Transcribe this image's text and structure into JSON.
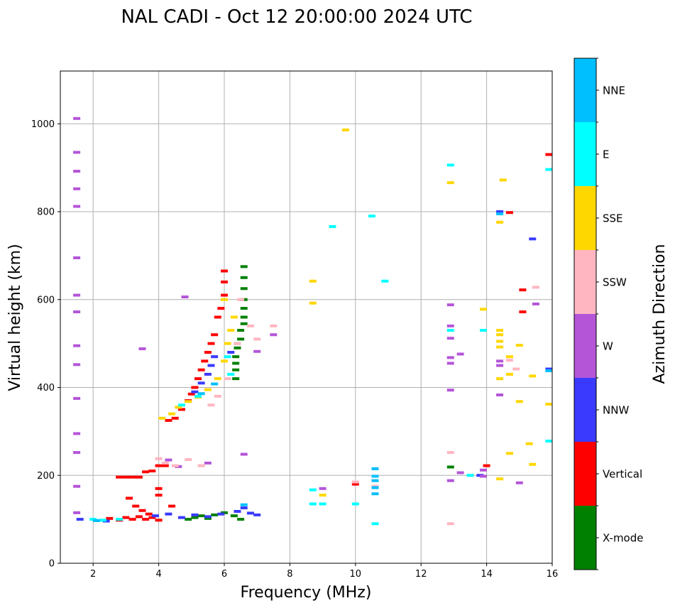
{
  "chart_data": {
    "type": "scatter",
    "title": "NAL CADI - Oct 12 20:00:00 2024 UTC",
    "xlabel": "Frequency (MHz)",
    "ylabel": "Virtual height (km)",
    "xlim": [
      1,
      16
    ],
    "ylim": [
      0,
      1120
    ],
    "xticks": [
      2,
      4,
      6,
      8,
      10,
      12,
      14,
      16
    ],
    "yticks": [
      0,
      200,
      400,
      600,
      800,
      1000
    ],
    "grid": true,
    "colorbar": {
      "label": "Azimuth Direction",
      "categories": [
        {
          "name": "X-mode",
          "color": "#008000"
        },
        {
          "name": "Vertical",
          "color": "#ff0000"
        },
        {
          "name": "NNW",
          "color": "#3a3aff"
        },
        {
          "name": "W",
          "color": "#b455d8"
        },
        {
          "name": "SSW",
          "color": "#ffb6c1"
        },
        {
          "name": "SSE",
          "color": "#ffd700"
        },
        {
          "name": "E",
          "color": "#00ffff"
        },
        {
          "name": "NNE",
          "color": "#00bfff"
        }
      ]
    },
    "series": [
      {
        "name": "X-mode",
        "points": [
          [
            4.9,
            100
          ],
          [
            5.1,
            104
          ],
          [
            5.3,
            108
          ],
          [
            5.5,
            102
          ],
          [
            5.7,
            110
          ],
          [
            6.0,
            115
          ],
          [
            6.3,
            108
          ],
          [
            6.5,
            100
          ],
          [
            6.35,
            440
          ],
          [
            6.35,
            455
          ],
          [
            6.35,
            470
          ],
          [
            6.4,
            490
          ],
          [
            6.5,
            510
          ],
          [
            6.5,
            530
          ],
          [
            6.6,
            545
          ],
          [
            6.6,
            560
          ],
          [
            6.6,
            580
          ],
          [
            6.6,
            600
          ],
          [
            6.6,
            625
          ],
          [
            6.6,
            650
          ],
          [
            6.6,
            675
          ],
          [
            6.35,
            420
          ],
          [
            6.4,
            500
          ],
          [
            12.9,
            219
          ]
        ]
      },
      {
        "name": "Vertical",
        "points": [
          [
            2.5,
            102
          ],
          [
            2.8,
            98
          ],
          [
            3.0,
            104
          ],
          [
            3.2,
            100
          ],
          [
            3.4,
            106
          ],
          [
            3.6,
            100
          ],
          [
            3.8,
            104
          ],
          [
            4.0,
            98
          ],
          [
            2.8,
            196
          ],
          [
            3.0,
            196
          ],
          [
            3.2,
            196
          ],
          [
            3.4,
            196
          ],
          [
            3.6,
            208
          ],
          [
            3.8,
            210
          ],
          [
            4.0,
            222
          ],
          [
            4.2,
            222
          ],
          [
            4.0,
            170
          ],
          [
            4.0,
            155
          ],
          [
            4.3,
            325
          ],
          [
            4.5,
            330
          ],
          [
            4.7,
            350
          ],
          [
            4.9,
            370
          ],
          [
            5.0,
            385
          ],
          [
            5.1,
            400
          ],
          [
            5.2,
            420
          ],
          [
            5.3,
            440
          ],
          [
            5.4,
            460
          ],
          [
            5.5,
            480
          ],
          [
            5.6,
            500
          ],
          [
            5.7,
            520
          ],
          [
            5.8,
            560
          ],
          [
            5.9,
            580
          ],
          [
            6.0,
            610
          ],
          [
            6.0,
            640
          ],
          [
            6.0,
            665
          ],
          [
            3.1,
            148
          ],
          [
            3.3,
            130
          ],
          [
            3.5,
            120
          ],
          [
            3.7,
            112
          ],
          [
            4.4,
            130
          ],
          [
            14.0,
            222
          ],
          [
            14.7,
            798
          ],
          [
            15.1,
            622
          ],
          [
            15.1,
            572
          ],
          [
            15.9,
            930
          ],
          [
            10.0,
            180
          ]
        ]
      },
      {
        "name": "NNW",
        "points": [
          [
            1.6,
            100
          ],
          [
            2.4,
            96
          ],
          [
            3.9,
            108
          ],
          [
            4.3,
            112
          ],
          [
            4.7,
            104
          ],
          [
            5.1,
            110
          ],
          [
            5.5,
            106
          ],
          [
            5.9,
            112
          ],
          [
            6.4,
            118
          ],
          [
            6.6,
            126
          ],
          [
            6.8,
            114
          ],
          [
            7.0,
            110
          ],
          [
            5.1,
            390
          ],
          [
            5.3,
            410
          ],
          [
            5.5,
            430
          ],
          [
            5.6,
            450
          ],
          [
            5.7,
            470
          ],
          [
            6.2,
            480
          ],
          [
            14.4,
            800
          ],
          [
            15.4,
            738
          ],
          [
            15.9,
            442
          ],
          [
            13.8,
            200
          ]
        ]
      },
      {
        "name": "W",
        "points": [
          [
            1.5,
            1012
          ],
          [
            1.5,
            935
          ],
          [
            1.5,
            892
          ],
          [
            1.5,
            852
          ],
          [
            1.5,
            812
          ],
          [
            1.5,
            695
          ],
          [
            1.5,
            610
          ],
          [
            1.5,
            572
          ],
          [
            1.5,
            495
          ],
          [
            1.5,
            452
          ],
          [
            1.5,
            375
          ],
          [
            1.5,
            295
          ],
          [
            1.5,
            252
          ],
          [
            1.5,
            175
          ],
          [
            1.5,
            115
          ],
          [
            3.5,
            488
          ],
          [
            4.3,
            235
          ],
          [
            4.6,
            220
          ],
          [
            5.5,
            228
          ],
          [
            6.6,
            248
          ],
          [
            4.8,
            606
          ],
          [
            7.0,
            482
          ],
          [
            7.5,
            520
          ],
          [
            9.0,
            170
          ],
          [
            12.9,
            588
          ],
          [
            12.9,
            540
          ],
          [
            12.9,
            512
          ],
          [
            12.9,
            468
          ],
          [
            12.9,
            455
          ],
          [
            12.9,
            394
          ],
          [
            12.9,
            188
          ],
          [
            13.2,
            206
          ],
          [
            13.2,
            476
          ],
          [
            13.9,
            212
          ],
          [
            13.9,
            198
          ],
          [
            14.4,
            460
          ],
          [
            14.4,
            450
          ],
          [
            14.4,
            383
          ],
          [
            15.0,
            183
          ],
          [
            15.5,
            590
          ]
        ]
      },
      {
        "name": "SSW",
        "points": [
          [
            4.0,
            238
          ],
          [
            4.2,
            228
          ],
          [
            4.5,
            222
          ],
          [
            4.9,
            236
          ],
          [
            5.3,
            222
          ],
          [
            5.6,
            360
          ],
          [
            5.8,
            380
          ],
          [
            6.1,
            420
          ],
          [
            6.4,
            500
          ],
          [
            6.8,
            540
          ],
          [
            7.0,
            510
          ],
          [
            7.5,
            540
          ],
          [
            12.9,
            252
          ],
          [
            12.9,
            90
          ],
          [
            10.0,
            185
          ],
          [
            10.6,
            175
          ],
          [
            14.7,
            462
          ],
          [
            14.9,
            442
          ],
          [
            15.5,
            628
          ],
          [
            6.5,
            600
          ]
        ]
      },
      {
        "name": "SSE",
        "points": [
          [
            4.1,
            330
          ],
          [
            4.4,
            340
          ],
          [
            4.6,
            355
          ],
          [
            4.9,
            368
          ],
          [
            5.2,
            378
          ],
          [
            5.5,
            395
          ],
          [
            5.8,
            420
          ],
          [
            6.0,
            460
          ],
          [
            6.1,
            500
          ],
          [
            6.2,
            530
          ],
          [
            6.3,
            560
          ],
          [
            6.0,
            600
          ],
          [
            8.7,
            642
          ],
          [
            8.7,
            592
          ],
          [
            9.7,
            986
          ],
          [
            9.0,
            155
          ],
          [
            12.9,
            866
          ],
          [
            13.9,
            578
          ],
          [
            14.5,
            872
          ],
          [
            14.4,
            530
          ],
          [
            14.4,
            520
          ],
          [
            14.4,
            505
          ],
          [
            14.4,
            492
          ],
          [
            14.4,
            420
          ],
          [
            14.4,
            192
          ],
          [
            14.7,
            250
          ],
          [
            14.7,
            470
          ],
          [
            14.7,
            430
          ],
          [
            15.0,
            496
          ],
          [
            15.0,
            368
          ],
          [
            15.3,
            272
          ],
          [
            15.4,
            426
          ],
          [
            15.4,
            225
          ],
          [
            15.9,
            362
          ],
          [
            14.4,
            776
          ]
        ]
      },
      {
        "name": "E",
        "points": [
          [
            2.0,
            100
          ],
          [
            2.3,
            98
          ],
          [
            2.8,
            100
          ],
          [
            4.7,
            360
          ],
          [
            5.2,
            380
          ],
          [
            6.1,
            470
          ],
          [
            6.2,
            430
          ],
          [
            8.7,
            135
          ],
          [
            9.0,
            135
          ],
          [
            8.7,
            167
          ],
          [
            9.3,
            766
          ],
          [
            10.0,
            135
          ],
          [
            10.5,
            790
          ],
          [
            10.9,
            642
          ],
          [
            12.9,
            906
          ],
          [
            12.9,
            530
          ],
          [
            13.9,
            530
          ],
          [
            13.5,
            200
          ],
          [
            15.9,
            896
          ],
          [
            15.9,
            278
          ],
          [
            10.6,
            90
          ]
        ]
      },
      {
        "name": "NNE",
        "points": [
          [
            2.1,
            97
          ],
          [
            5.3,
            386
          ],
          [
            5.7,
            408
          ],
          [
            6.6,
            133
          ],
          [
            10.6,
            215
          ],
          [
            10.6,
            198
          ],
          [
            10.6,
            188
          ],
          [
            10.6,
            172
          ],
          [
            10.6,
            158
          ],
          [
            14.4,
            795
          ],
          [
            15.9,
            438
          ]
        ]
      }
    ]
  }
}
